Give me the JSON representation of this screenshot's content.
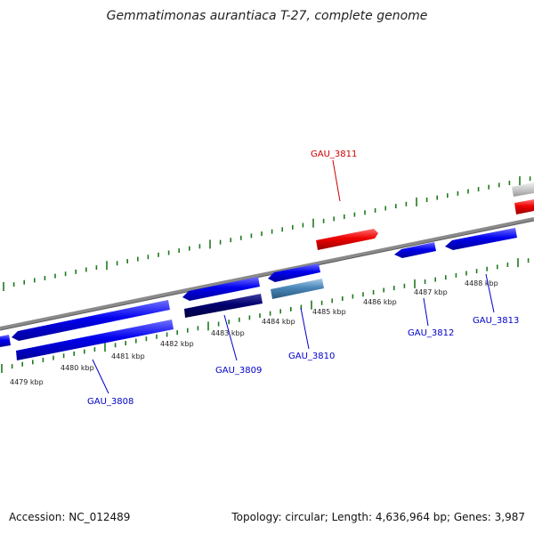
{
  "title": "Gemmatimonas aurantiaca T-27, complete genome",
  "footer": {
    "accession": "Accession: NC_012489",
    "summary": "Topology: circular; Length: 4,636,964 bp; Genes: 3,987"
  },
  "colors": {
    "backbone": "#8a8a8a",
    "tick": "#1f7a1f",
    "forward_gene": "#cc0000",
    "reverse_gene": "#0000e6",
    "dark_gene": "#000070",
    "steel_gene": "#4a86b8",
    "grey_gene": "#c8c8c8",
    "label_red": "#cc0000",
    "label_blue": "#0000cc"
  },
  "scale": {
    "ticks": [
      "4479 kbp",
      "4480 kbp",
      "4481 kbp",
      "4482 kbp",
      "4483 kbp",
      "4484 kbp",
      "4485 kbp",
      "4486 kbp",
      "4487 kbp",
      "4488 kbp"
    ]
  },
  "genes": {
    "labels": [
      {
        "name": "GAU_3808",
        "color": "blue"
      },
      {
        "name": "GAU_3809",
        "color": "blue"
      },
      {
        "name": "GAU_3810",
        "color": "blue"
      },
      {
        "name": "GAU_3811",
        "color": "red"
      },
      {
        "name": "GAU_3812",
        "color": "blue"
      },
      {
        "name": "GAU_3813",
        "color": "blue"
      }
    ]
  }
}
